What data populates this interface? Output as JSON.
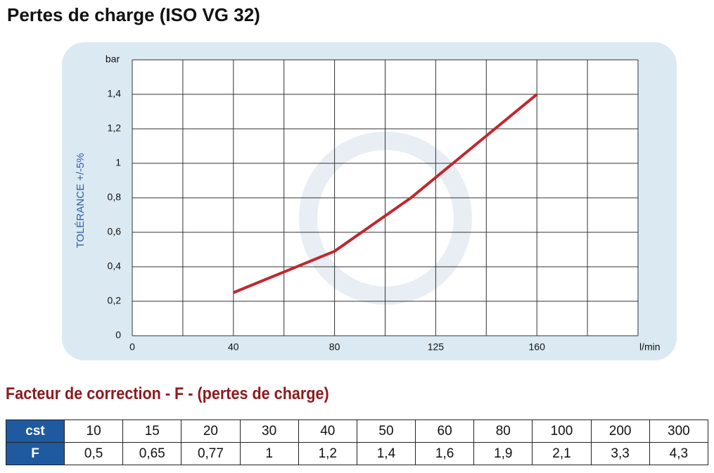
{
  "chart_data": {
    "type": "line",
    "title": "Pertes de charge (ISO VG 32)",
    "y_label": "TOLÉRANCE +/-5%",
    "y_unit": "bar",
    "x_unit": "l/min",
    "x": [
      40,
      80,
      114,
      160
    ],
    "values": [
      0.25,
      0.49,
      0.8,
      1.4
    ],
    "color": "#c1272d",
    "xticks": [
      0,
      40,
      80,
      125,
      160
    ],
    "ylim": [
      0,
      1.6
    ],
    "yticks": [
      0,
      {
        "value": 0.2,
        "label": "0,2"
      },
      {
        "value": 0.4,
        "label": "0,4"
      },
      {
        "value": 0.6,
        "label": "0,6"
      },
      {
        "value": 0.8,
        "label": "0,8"
      },
      1,
      {
        "value": 1.2,
        "label": "1,2"
      },
      {
        "value": 1.4,
        "label": "1,4"
      }
    ],
    "grid": true
  },
  "correction_table": {
    "title": "Facteur de correction - F - (pertes de charge)",
    "rows": [
      [
        "cst",
        "10",
        "15",
        "20",
        "30",
        "40",
        "50",
        "60",
        "80",
        "100",
        "200",
        "300"
      ],
      [
        "F",
        "0,5",
        "0,65",
        "0,77",
        "1",
        "1,2",
        "1,4",
        "1,6",
        "1,9",
        "2,1",
        "3,3",
        "4,3"
      ]
    ]
  }
}
